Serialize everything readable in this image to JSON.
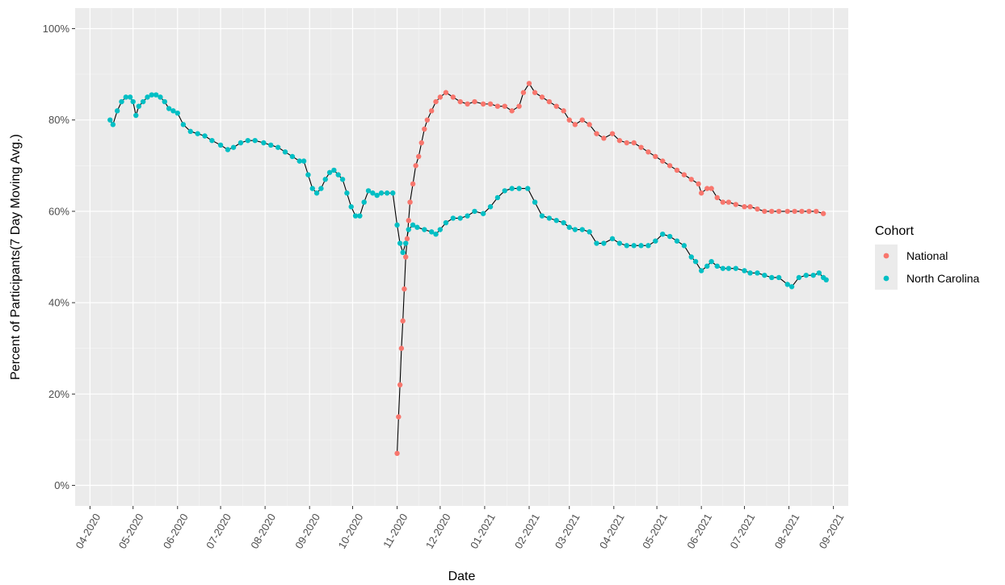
{
  "chart_data": {
    "type": "scatter",
    "xlabel": "Date",
    "ylabel": "Percent of Participants(7 Day Moving Avg.)",
    "ylim": [
      0,
      100
    ],
    "xlim": [
      "2020-04-01",
      "2021-09-01"
    ],
    "y_ticks": [
      0,
      20,
      40,
      60,
      80,
      100
    ],
    "y_tick_labels": [
      "0%",
      "20%",
      "40%",
      "60%",
      "80%",
      "100%"
    ],
    "x_ticks": [
      "2020-04-01",
      "2020-05-01",
      "2020-06-01",
      "2020-07-01",
      "2020-08-01",
      "2020-09-01",
      "2020-10-01",
      "2020-11-01",
      "2020-12-01",
      "2021-01-01",
      "2021-02-01",
      "2021-03-01",
      "2021-04-01",
      "2021-05-01",
      "2021-06-01",
      "2021-07-01",
      "2021-08-01",
      "2021-09-01"
    ],
    "x_tick_labels": [
      "04-2020",
      "05-2020",
      "06-2020",
      "07-2020",
      "08-2020",
      "09-2020",
      "10-2020",
      "11-2020",
      "12-2020",
      "01-2021",
      "02-2021",
      "03-2021",
      "04-2021",
      "05-2021",
      "06-2021",
      "07-2021",
      "08-2021",
      "09-2021"
    ],
    "grid": true,
    "legend": {
      "title": "Cohort",
      "position": "right"
    },
    "series": [
      {
        "name": "National",
        "color": "#F8766D",
        "points": [
          [
            "2020-11-01",
            7
          ],
          [
            "2020-11-02",
            15
          ],
          [
            "2020-11-03",
            22
          ],
          [
            "2020-11-04",
            30
          ],
          [
            "2020-11-05",
            36
          ],
          [
            "2020-11-06",
            43
          ],
          [
            "2020-11-07",
            50
          ],
          [
            "2020-11-08",
            54
          ],
          [
            "2020-11-09",
            58
          ],
          [
            "2020-11-10",
            62
          ],
          [
            "2020-11-12",
            66
          ],
          [
            "2020-11-14",
            70
          ],
          [
            "2020-11-16",
            72
          ],
          [
            "2020-11-18",
            75
          ],
          [
            "2020-11-20",
            78
          ],
          [
            "2020-11-22",
            80
          ],
          [
            "2020-11-25",
            82
          ],
          [
            "2020-11-28",
            84
          ],
          [
            "2020-12-01",
            85
          ],
          [
            "2020-12-05",
            86
          ],
          [
            "2020-12-10",
            85
          ],
          [
            "2020-12-15",
            84
          ],
          [
            "2020-12-20",
            83.5
          ],
          [
            "2020-12-25",
            84
          ],
          [
            "2020-12-31",
            83.5
          ],
          [
            "2021-01-05",
            83.5
          ],
          [
            "2021-01-10",
            83
          ],
          [
            "2021-01-15",
            83
          ],
          [
            "2021-01-20",
            82
          ],
          [
            "2021-01-25",
            83
          ],
          [
            "2021-01-28",
            86
          ],
          [
            "2021-02-01",
            88
          ],
          [
            "2021-02-05",
            86
          ],
          [
            "2021-02-10",
            85
          ],
          [
            "2021-02-15",
            84
          ],
          [
            "2021-02-20",
            83
          ],
          [
            "2021-02-25",
            82
          ],
          [
            "2021-03-01",
            80
          ],
          [
            "2021-03-05",
            79
          ],
          [
            "2021-03-10",
            80
          ],
          [
            "2021-03-15",
            79
          ],
          [
            "2021-03-20",
            77
          ],
          [
            "2021-03-25",
            76
          ],
          [
            "2021-03-31",
            77
          ],
          [
            "2021-04-05",
            75.5
          ],
          [
            "2021-04-10",
            75
          ],
          [
            "2021-04-15",
            75
          ],
          [
            "2021-04-20",
            74
          ],
          [
            "2021-04-25",
            73
          ],
          [
            "2021-04-30",
            72
          ],
          [
            "2021-05-05",
            71
          ],
          [
            "2021-05-10",
            70
          ],
          [
            "2021-05-15",
            69
          ],
          [
            "2021-05-20",
            68
          ],
          [
            "2021-05-25",
            67
          ],
          [
            "2021-05-30",
            66
          ],
          [
            "2021-06-01",
            64
          ],
          [
            "2021-06-05",
            65
          ],
          [
            "2021-06-08",
            65
          ],
          [
            "2021-06-12",
            63
          ],
          [
            "2021-06-16",
            62
          ],
          [
            "2021-06-20",
            62
          ],
          [
            "2021-06-25",
            61.5
          ],
          [
            "2021-07-01",
            61
          ],
          [
            "2021-07-05",
            61
          ],
          [
            "2021-07-10",
            60.5
          ],
          [
            "2021-07-15",
            60
          ],
          [
            "2021-07-20",
            60
          ],
          [
            "2021-07-25",
            60
          ],
          [
            "2021-07-31",
            60
          ],
          [
            "2021-08-05",
            60
          ],
          [
            "2021-08-10",
            60
          ],
          [
            "2021-08-15",
            60
          ],
          [
            "2021-08-20",
            60
          ],
          [
            "2021-08-25",
            59.5
          ]
        ]
      },
      {
        "name": "North Carolina",
        "color": "#00BFC4",
        "points": [
          [
            "2020-04-15",
            80
          ],
          [
            "2020-04-17",
            79
          ],
          [
            "2020-04-20",
            82
          ],
          [
            "2020-04-23",
            84
          ],
          [
            "2020-04-26",
            85
          ],
          [
            "2020-04-29",
            85
          ],
          [
            "2020-05-01",
            84
          ],
          [
            "2020-05-03",
            81
          ],
          [
            "2020-05-05",
            83
          ],
          [
            "2020-05-08",
            84
          ],
          [
            "2020-05-11",
            85
          ],
          [
            "2020-05-14",
            85.5
          ],
          [
            "2020-05-17",
            85.5
          ],
          [
            "2020-05-20",
            85
          ],
          [
            "2020-05-23",
            84
          ],
          [
            "2020-05-26",
            82.5
          ],
          [
            "2020-05-29",
            82
          ],
          [
            "2020-06-01",
            81.5
          ],
          [
            "2020-06-05",
            79
          ],
          [
            "2020-06-10",
            77.5
          ],
          [
            "2020-06-15",
            77
          ],
          [
            "2020-06-20",
            76.5
          ],
          [
            "2020-06-25",
            75.5
          ],
          [
            "2020-07-01",
            74.5
          ],
          [
            "2020-07-06",
            73.5
          ],
          [
            "2020-07-10",
            74
          ],
          [
            "2020-07-15",
            75
          ],
          [
            "2020-07-20",
            75.5
          ],
          [
            "2020-07-25",
            75.5
          ],
          [
            "2020-07-31",
            75
          ],
          [
            "2020-08-05",
            74.5
          ],
          [
            "2020-08-10",
            74
          ],
          [
            "2020-08-15",
            73
          ],
          [
            "2020-08-20",
            72
          ],
          [
            "2020-08-25",
            71
          ],
          [
            "2020-08-28",
            71
          ],
          [
            "2020-08-31",
            68
          ],
          [
            "2020-09-03",
            65
          ],
          [
            "2020-09-06",
            64
          ],
          [
            "2020-09-09",
            65
          ],
          [
            "2020-09-12",
            67
          ],
          [
            "2020-09-15",
            68.5
          ],
          [
            "2020-09-18",
            69
          ],
          [
            "2020-09-21",
            68
          ],
          [
            "2020-09-24",
            67
          ],
          [
            "2020-09-27",
            64
          ],
          [
            "2020-09-30",
            61
          ],
          [
            "2020-10-03",
            59
          ],
          [
            "2020-10-06",
            59
          ],
          [
            "2020-10-09",
            62
          ],
          [
            "2020-10-12",
            64.5
          ],
          [
            "2020-10-15",
            64
          ],
          [
            "2020-10-18",
            63.5
          ],
          [
            "2020-10-21",
            64
          ],
          [
            "2020-10-25",
            64
          ],
          [
            "2020-10-29",
            64
          ],
          [
            "2020-11-01",
            57
          ],
          [
            "2020-11-03",
            53
          ],
          [
            "2020-11-05",
            51
          ],
          [
            "2020-11-07",
            53
          ],
          [
            "2020-11-09",
            56
          ],
          [
            "2020-11-12",
            57
          ],
          [
            "2020-11-15",
            56.5
          ],
          [
            "2020-11-20",
            56
          ],
          [
            "2020-11-25",
            55.5
          ],
          [
            "2020-11-28",
            55
          ],
          [
            "2020-12-01",
            56
          ],
          [
            "2020-12-05",
            57.5
          ],
          [
            "2020-12-10",
            58.5
          ],
          [
            "2020-12-15",
            58.5
          ],
          [
            "2020-12-20",
            59
          ],
          [
            "2020-12-25",
            60
          ],
          [
            "2020-12-31",
            59.5
          ],
          [
            "2021-01-05",
            61
          ],
          [
            "2021-01-10",
            63
          ],
          [
            "2021-01-15",
            64.5
          ],
          [
            "2021-01-20",
            65
          ],
          [
            "2021-01-25",
            65
          ],
          [
            "2021-01-31",
            65
          ],
          [
            "2021-02-05",
            62
          ],
          [
            "2021-02-10",
            59
          ],
          [
            "2021-02-15",
            58.5
          ],
          [
            "2021-02-20",
            58
          ],
          [
            "2021-02-25",
            57.5
          ],
          [
            "2021-03-01",
            56.5
          ],
          [
            "2021-03-05",
            56
          ],
          [
            "2021-03-10",
            56
          ],
          [
            "2021-03-15",
            55.5
          ],
          [
            "2021-03-20",
            53
          ],
          [
            "2021-03-25",
            53
          ],
          [
            "2021-03-31",
            54
          ],
          [
            "2021-04-05",
            53
          ],
          [
            "2021-04-10",
            52.5
          ],
          [
            "2021-04-15",
            52.5
          ],
          [
            "2021-04-20",
            52.5
          ],
          [
            "2021-04-25",
            52.5
          ],
          [
            "2021-04-30",
            53.5
          ],
          [
            "2021-05-05",
            55
          ],
          [
            "2021-05-10",
            54.5
          ],
          [
            "2021-05-15",
            53.5
          ],
          [
            "2021-05-20",
            52.5
          ],
          [
            "2021-05-25",
            50
          ],
          [
            "2021-05-28",
            49
          ],
          [
            "2021-06-01",
            47
          ],
          [
            "2021-06-05",
            48
          ],
          [
            "2021-06-08",
            49
          ],
          [
            "2021-06-12",
            48
          ],
          [
            "2021-06-16",
            47.5
          ],
          [
            "2021-06-20",
            47.5
          ],
          [
            "2021-06-25",
            47.5
          ],
          [
            "2021-07-01",
            47
          ],
          [
            "2021-07-05",
            46.5
          ],
          [
            "2021-07-10",
            46.5
          ],
          [
            "2021-07-15",
            46
          ],
          [
            "2021-07-20",
            45.5
          ],
          [
            "2021-07-25",
            45.5
          ],
          [
            "2021-07-31",
            44
          ],
          [
            "2021-08-03",
            43.5
          ],
          [
            "2021-08-08",
            45.5
          ],
          [
            "2021-08-13",
            46
          ],
          [
            "2021-08-18",
            46
          ],
          [
            "2021-08-22",
            46.5
          ],
          [
            "2021-08-25",
            45.5
          ],
          [
            "2021-08-27",
            45
          ]
        ]
      }
    ]
  }
}
